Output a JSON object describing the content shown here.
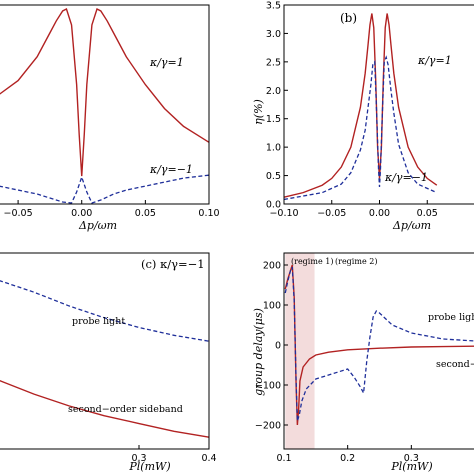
{
  "chart_data": [
    {
      "type": "line",
      "panel_label": "",
      "xlabel": "Δp/ωm",
      "ylabel": "",
      "xlim": [
        -0.065,
        0.1
      ],
      "ylim": [
        0,
        1
      ],
      "xticks": [
        "−0.05",
        "0.00",
        "0.05",
        "0.10"
      ],
      "xtick_values": [
        -0.05,
        0,
        0.05,
        0.1
      ],
      "yticks": [],
      "series": [
        {
          "name": "κ/γ=1",
          "style": "solid red",
          "x": [
            -0.065,
            -0.05,
            -0.035,
            -0.025,
            -0.02,
            -0.015,
            -0.012,
            -0.008,
            -0.004,
            -0.002,
            0,
            0.002,
            0.004,
            0.008,
            0.012,
            0.015,
            0.02,
            0.025,
            0.035,
            0.05,
            0.065,
            0.08,
            0.1
          ],
          "y": [
            0.55,
            0.62,
            0.74,
            0.86,
            0.92,
            0.97,
            0.98,
            0.9,
            0.6,
            0.35,
            0.14,
            0.35,
            0.6,
            0.9,
            0.98,
            0.97,
            0.92,
            0.86,
            0.74,
            0.6,
            0.48,
            0.39,
            0.31
          ]
        },
        {
          "name": "κ/γ=−1",
          "style": "dashed blue",
          "x": [
            -0.065,
            -0.05,
            -0.035,
            -0.025,
            -0.015,
            -0.008,
            -0.004,
            0,
            0.004,
            0.008,
            0.015,
            0.025,
            0.035,
            0.05,
            0.065,
            0.08,
            0.1
          ],
          "y": [
            0.09,
            0.07,
            0.05,
            0.03,
            0.01,
            0.005,
            0.06,
            0.135,
            0.06,
            0.005,
            0.02,
            0.05,
            0.07,
            0.09,
            0.11,
            0.13,
            0.145
          ]
        }
      ],
      "annotations": [
        "κ/γ=1",
        "κ/γ=−1"
      ]
    },
    {
      "type": "line",
      "panel_label": "(b)",
      "xlabel": "Δp/ωm",
      "ylabel": "η(%)",
      "xlim": [
        -0.1,
        0.1
      ],
      "ylim": [
        0,
        3.5
      ],
      "xticks": [
        "−0.10",
        "−0.05",
        "0.00",
        "0.05"
      ],
      "xtick_values": [
        -0.1,
        -0.05,
        0,
        0.05
      ],
      "yticks": [
        "0.0",
        "0.5",
        "1.0",
        "1.5",
        "2.0",
        "2.5",
        "3.0",
        "3.5"
      ],
      "ytick_values": [
        0,
        0.5,
        1,
        1.5,
        2,
        2.5,
        3,
        3.5
      ],
      "series": [
        {
          "name": "κ/γ=1",
          "style": "solid red",
          "x": [
            -0.1,
            -0.08,
            -0.06,
            -0.05,
            -0.04,
            -0.03,
            -0.02,
            -0.015,
            -0.012,
            -0.01,
            -0.008,
            -0.006,
            -0.004,
            -0.002,
            0,
            0.002,
            0.004,
            0.006,
            0.008,
            0.01,
            0.012,
            0.015,
            0.02,
            0.03,
            0.04,
            0.05,
            0.06
          ],
          "y": [
            0.12,
            0.2,
            0.33,
            0.45,
            0.65,
            1.0,
            1.7,
            2.3,
            2.8,
            3.15,
            3.35,
            3.1,
            2.2,
            1.0,
            0.45,
            1.0,
            2.2,
            3.1,
            3.35,
            3.15,
            2.8,
            2.3,
            1.7,
            1.0,
            0.65,
            0.45,
            0.33
          ]
        },
        {
          "name": "κ/γ=−1",
          "style": "dashed blue",
          "x": [
            -0.1,
            -0.06,
            -0.04,
            -0.03,
            -0.02,
            -0.015,
            -0.012,
            -0.009,
            -0.007,
            -0.005,
            -0.003,
            -0.001,
            0,
            0.001,
            0.003,
            0.005,
            0.007,
            0.009,
            0.012,
            0.015,
            0.02,
            0.03,
            0.04,
            0.06
          ],
          "y": [
            0.08,
            0.2,
            0.35,
            0.55,
            0.95,
            1.3,
            1.7,
            2.1,
            2.45,
            2.5,
            1.6,
            0.6,
            0.3,
            0.6,
            1.6,
            2.5,
            2.58,
            2.45,
            2.0,
            1.6,
            1.05,
            0.55,
            0.35,
            0.2
          ]
        }
      ],
      "annotations": [
        "κ/γ=1",
        "κ/γ=−1"
      ]
    },
    {
      "type": "line",
      "panel_label": "(c) κ/γ=−1",
      "xlabel": "Pl(mW)",
      "ylabel": "",
      "xlim": [
        0.1,
        0.4
      ],
      "ylim": [
        0,
        1
      ],
      "xticks": [
        "0.3",
        "0.4"
      ],
      "xtick_values": [
        0.3,
        0.4
      ],
      "yticks": [],
      "series": [
        {
          "name": "probe light",
          "style": "dashed blue",
          "x": [
            0.1,
            0.15,
            0.2,
            0.25,
            0.3,
            0.35,
            0.4
          ],
          "y": [
            0.86,
            0.8,
            0.73,
            0.67,
            0.62,
            0.58,
            0.55
          ]
        },
        {
          "name": "second−order sideband",
          "style": "solid red",
          "x": [
            0.1,
            0.15,
            0.2,
            0.25,
            0.3,
            0.35,
            0.4
          ],
          "y": [
            0.35,
            0.28,
            0.22,
            0.17,
            0.13,
            0.09,
            0.06
          ]
        }
      ],
      "annotations": [
        "probe light",
        "second−order sideband"
      ]
    },
    {
      "type": "line",
      "panel_label": "",
      "xlabel": "Pl(mW)",
      "ylabel": "group delay(μs)",
      "xlim": [
        0.1,
        0.4
      ],
      "ylim": [
        -260,
        230
      ],
      "xticks": [
        "0.1",
        "0.2",
        "0.3"
      ],
      "xtick_values": [
        0.1,
        0.2,
        0.3
      ],
      "yticks": [
        "−200",
        "−100",
        "0",
        "100",
        "200"
      ],
      "ytick_values": [
        -200,
        -100,
        0,
        100,
        200
      ],
      "shaded_region": [
        0.102,
        0.148
      ],
      "series": [
        {
          "name": "second−order sideband",
          "style": "solid red",
          "x": [
            0.102,
            0.106,
            0.11,
            0.113,
            0.116,
            0.119,
            0.121,
            0.123,
            0.125,
            0.13,
            0.14,
            0.15,
            0.17,
            0.2,
            0.25,
            0.3,
            0.35,
            0.4
          ],
          "y": [
            140,
            165,
            185,
            200,
            120,
            -100,
            -200,
            -160,
            -90,
            -55,
            -35,
            -25,
            -18,
            -12,
            -8,
            -5,
            -4,
            -3
          ]
        },
        {
          "name": "probe light",
          "style": "dashed blue",
          "x": [
            0.102,
            0.106,
            0.11,
            0.113,
            0.116,
            0.119,
            0.121,
            0.124,
            0.128,
            0.135,
            0.15,
            0.17,
            0.2,
            0.21,
            0.22,
            0.225,
            0.23,
            0.235,
            0.24,
            0.245,
            0.25,
            0.26,
            0.27,
            0.3,
            0.35,
            0.4
          ],
          "y": [
            130,
            160,
            185,
            195,
            110,
            -90,
            -190,
            -175,
            -140,
            -110,
            -85,
            -75,
            -60,
            -80,
            -105,
            -120,
            -40,
            20,
            70,
            85,
            80,
            65,
            50,
            30,
            15,
            10
          ]
        }
      ],
      "annotations": [
        "(regime 1)",
        "(regime 2)",
        "probe light",
        "second−order sideband"
      ]
    }
  ]
}
